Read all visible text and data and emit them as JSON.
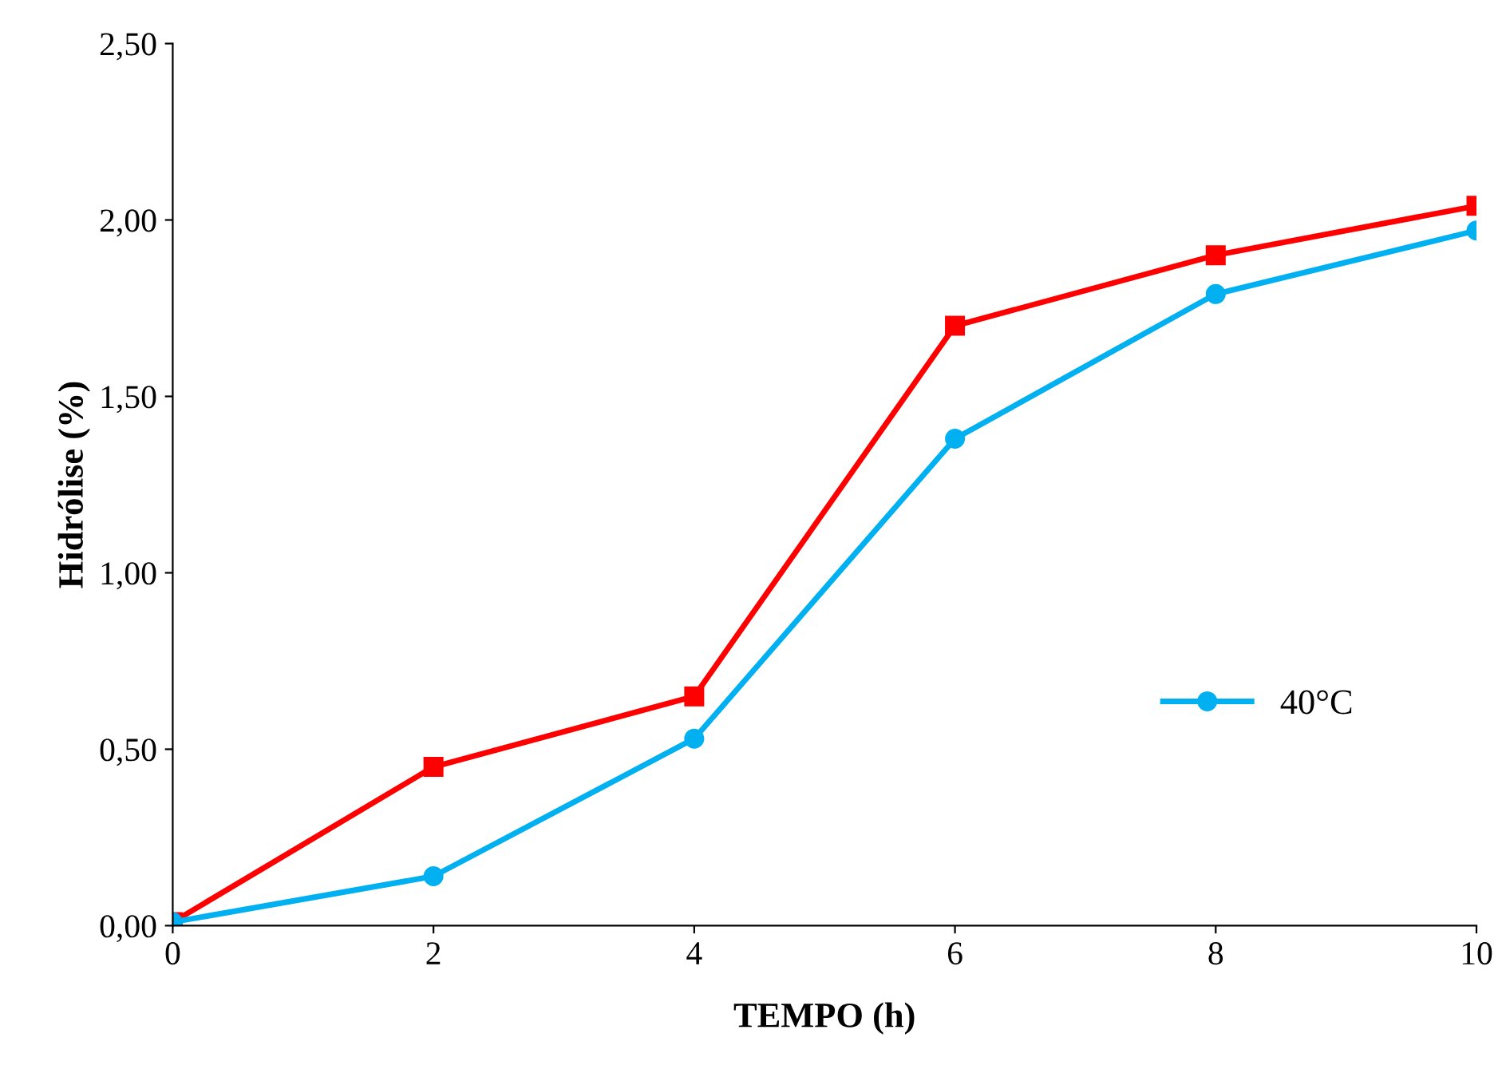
{
  "chart_data": {
    "type": "line",
    "xlabel": "TEMPO (h)",
    "ylabel": "Hidrólise (%)",
    "x": [
      0,
      2,
      4,
      6,
      8,
      10
    ],
    "series": [
      {
        "color": "#ff0000",
        "marker": "square",
        "values": [
          0.01,
          0.45,
          0.65,
          1.7,
          1.9,
          2.04
        ]
      },
      {
        "name": "40°C",
        "color": "#00b0f0",
        "marker": "circle",
        "values": [
          0.01,
          0.14,
          0.53,
          1.38,
          1.79,
          1.97
        ]
      }
    ],
    "xlim": [
      0,
      10
    ],
    "xticks": [
      0,
      2,
      4,
      6,
      8,
      10
    ],
    "ylim": [
      0,
      2.5
    ],
    "yticks": [
      {
        "value": 0,
        "label": "0,00"
      },
      {
        "value": 0.5,
        "label": "0,50"
      },
      {
        "value": 1.0,
        "label": "1,00"
      },
      {
        "value": 1.5,
        "label": "1,50"
      },
      {
        "value": 2.0,
        "label": "2,00"
      },
      {
        "value": 2.5,
        "label": "2,50"
      }
    ],
    "grid": false,
    "legend": "right",
    "line_style": "solid"
  }
}
